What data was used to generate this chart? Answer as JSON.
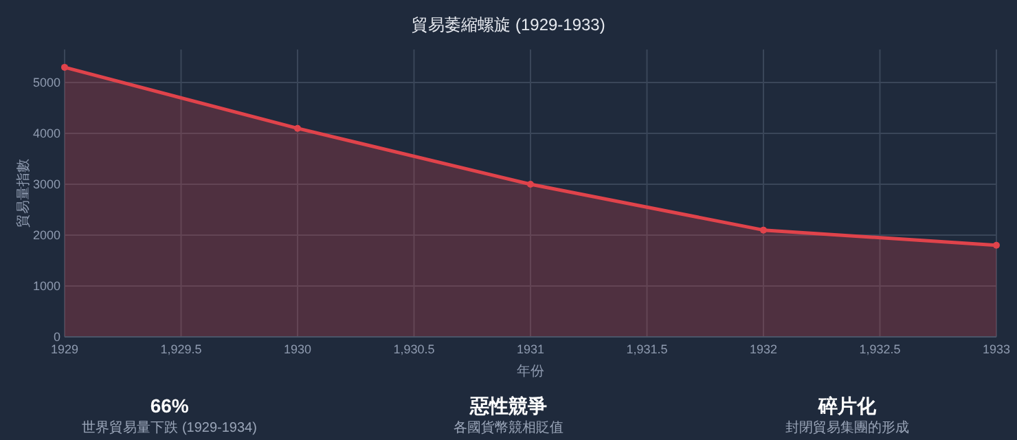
{
  "chart_data": [
    {
      "type": "line",
      "title": "貿易萎縮螺旋 (1929-1933)",
      "xlabel": "年份",
      "ylabel": "貿易量指數",
      "x": [
        1929,
        1930,
        1931,
        1932,
        1933
      ],
      "series": [
        {
          "type": "area",
          "color": "#e0434b",
          "values": [
            5300,
            4100,
            3000,
            2100,
            1800
          ]
        }
      ],
      "xlim": [
        1929,
        1933
      ],
      "xticks": [
        1929,
        {
          "value": 1929.5,
          "label": "1,929.5"
        },
        1930,
        {
          "value": 1930.5,
          "label": "1,930.5"
        },
        1931,
        {
          "value": 1931.5,
          "label": "1,931.5"
        },
        1932,
        {
          "value": 1932.5,
          "label": "1,932.5"
        },
        1933
      ],
      "ylim": [
        0,
        5650
      ],
      "yticks": [
        0,
        1000,
        2000,
        3000,
        4000,
        5000
      ],
      "grid": true,
      "marker": "circle",
      "line_style": "solid"
    },
    {
      "type": "other",
      "title": "66%",
      "subtitle": "世界貿易量下跌 (1929-1934)"
    },
    {
      "type": "other",
      "title": "惡性競爭",
      "subtitle": "各國貨幣競相貶值"
    },
    {
      "type": "other",
      "title": "碎片化",
      "subtitle": "封閉貿易集團的形成"
    }
  ]
}
